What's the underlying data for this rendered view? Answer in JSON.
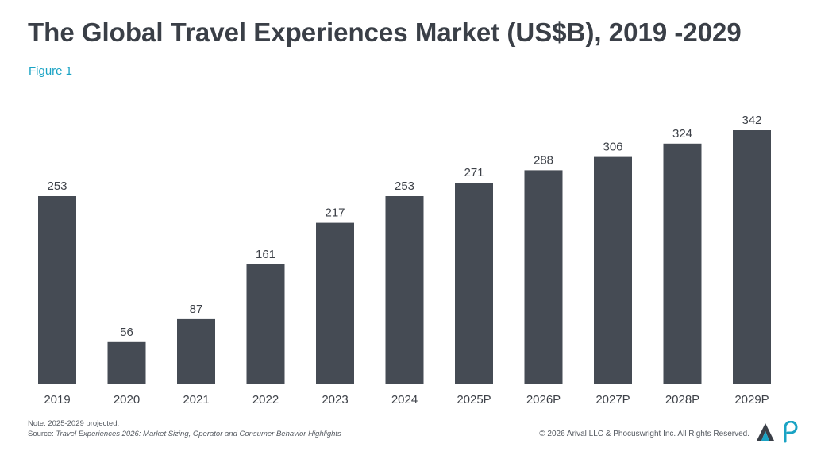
{
  "header": {
    "title": "The Global Travel Experiences Market (US$B), 2019 -2029",
    "figure_label": "Figure 1"
  },
  "footer": {
    "note": "Note: 2025-2029 projected.",
    "source_prefix": "Source: ",
    "source_title": "Travel Experiences 2026: Market Sizing, Operator and Consumer Behavior Highlights",
    "copyright": "© 2026 Arival LLC & Phocuswright Inc. All Rights Reserved."
  },
  "colors": {
    "bar": "#454b54",
    "title": "#3a3f47",
    "figure_label": "#1aa3c4",
    "axis": "#555555",
    "logo_a_dark": "#3a3f47",
    "logo_a_accent": "#1aa3c4",
    "logo_p": "#1aa3c4"
  },
  "icons": {
    "arival_logo": "arival-logo-icon",
    "phocuswright_logo": "phocuswright-logo-icon"
  },
  "chart_data": {
    "type": "bar",
    "categories": [
      "2019",
      "2020",
      "2021",
      "2022",
      "2023",
      "2024",
      "2025P",
      "2026P",
      "2027P",
      "2028P",
      "2029P"
    ],
    "values": [
      253,
      56,
      87,
      161,
      217,
      253,
      271,
      288,
      306,
      324,
      342
    ],
    "title": "The Global Travel Experiences Market (US$B), 2019 -2029",
    "xlabel": "",
    "ylabel": "",
    "ylim": [
      0,
      342
    ],
    "grid": false,
    "data_labels": true
  }
}
